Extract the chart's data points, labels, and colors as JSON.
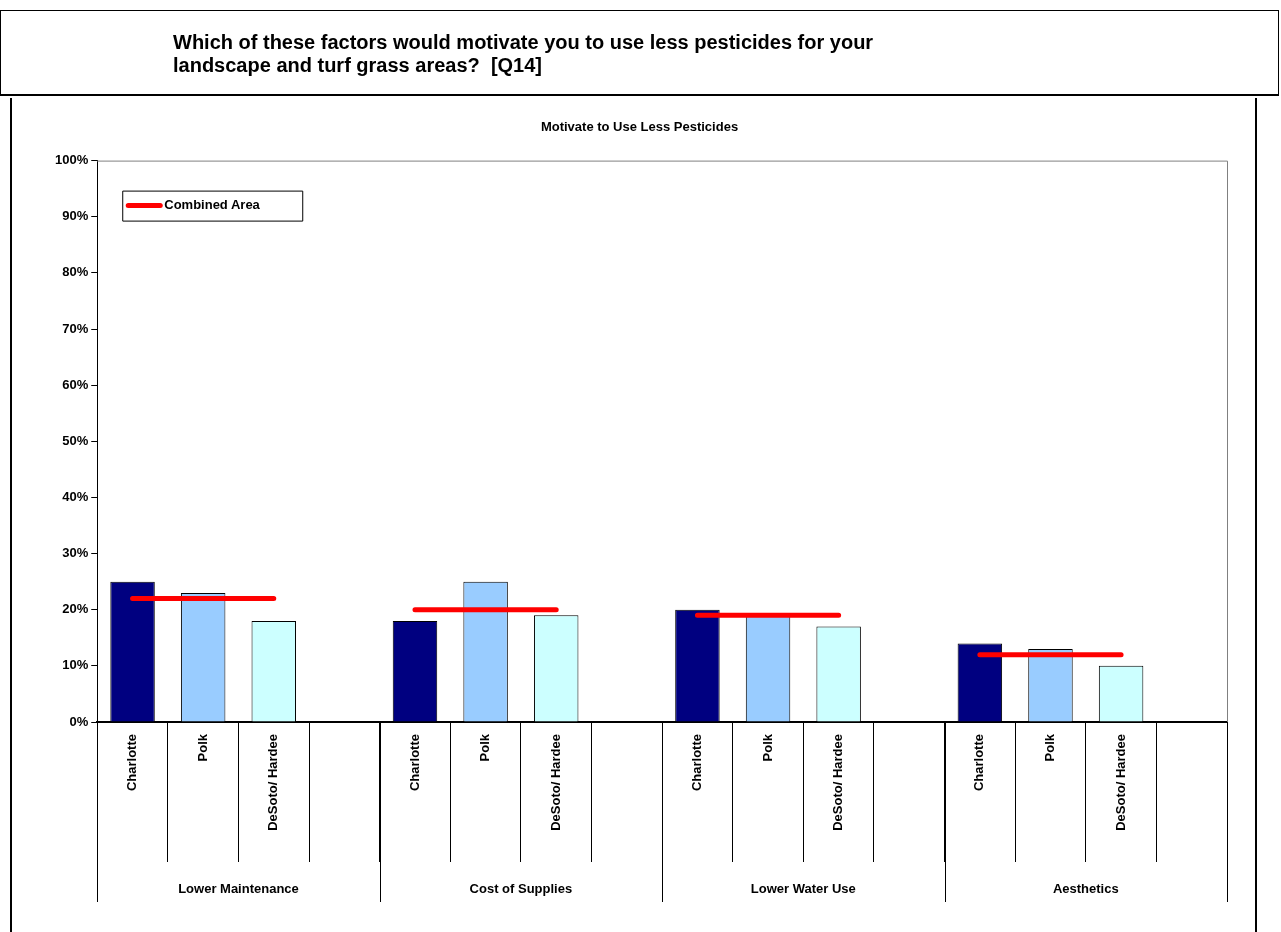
{
  "chart_data": {
    "type": "bar",
    "title": "Which of these factors would motivate you to use less pesticides for your landscape and turf grass areas?  [Q14]",
    "subtitle": "Motivate to Use Less Pesticides",
    "categories": [
      "Charlotte",
      "Polk",
      "DeSoto/ Hardee",
      null,
      "Charlotte",
      "Polk",
      "DeSoto/ Hardee",
      null,
      "Charlotte",
      "Polk",
      "DeSoto/ Hardee",
      null,
      "Charlotte",
      "Polk",
      "DeSoto/ Hardee",
      null
    ],
    "series": [
      {
        "colors": [
          "#000080",
          "#99ccff",
          "#ccffff",
          null,
          "#000080",
          "#99ccff",
          "#ccffff",
          null,
          "#000080",
          "#99ccff",
          "#ccffff",
          null,
          "#000080",
          "#99ccff",
          "#ccffff",
          null
        ],
        "values": [
          25,
          23,
          18,
          null,
          18,
          25,
          19,
          null,
          20,
          19,
          17,
          null,
          14,
          13,
          10,
          null
        ]
      },
      {
        "type": "line",
        "name": "Combined Area",
        "color": "#ff0000",
        "values": [
          22,
          22,
          22,
          null,
          20,
          20,
          20,
          null,
          19,
          19,
          19,
          null,
          12,
          12,
          12,
          null
        ]
      }
    ],
    "annotations": [
      "Lower Maintenance",
      "Cost of Supplies",
      "Lower Water Use",
      "Aesthetics"
    ],
    "ylim": [
      0,
      100
    ],
    "yticks": [
      {
        "value": 0,
        "label": "0%"
      },
      {
        "value": 10,
        "label": "10%"
      },
      {
        "value": 20,
        "label": "20%"
      },
      {
        "value": 30,
        "label": "30%"
      },
      {
        "value": 40,
        "label": "40%"
      },
      {
        "value": 50,
        "label": "50%"
      },
      {
        "value": 60,
        "label": "60%"
      },
      {
        "value": 70,
        "label": "70%"
      },
      {
        "value": 80,
        "label": "80%"
      },
      {
        "value": 90,
        "label": "90%"
      },
      {
        "value": 100,
        "label": "100%"
      }
    ],
    "grid": false,
    "legend": "top left"
  }
}
